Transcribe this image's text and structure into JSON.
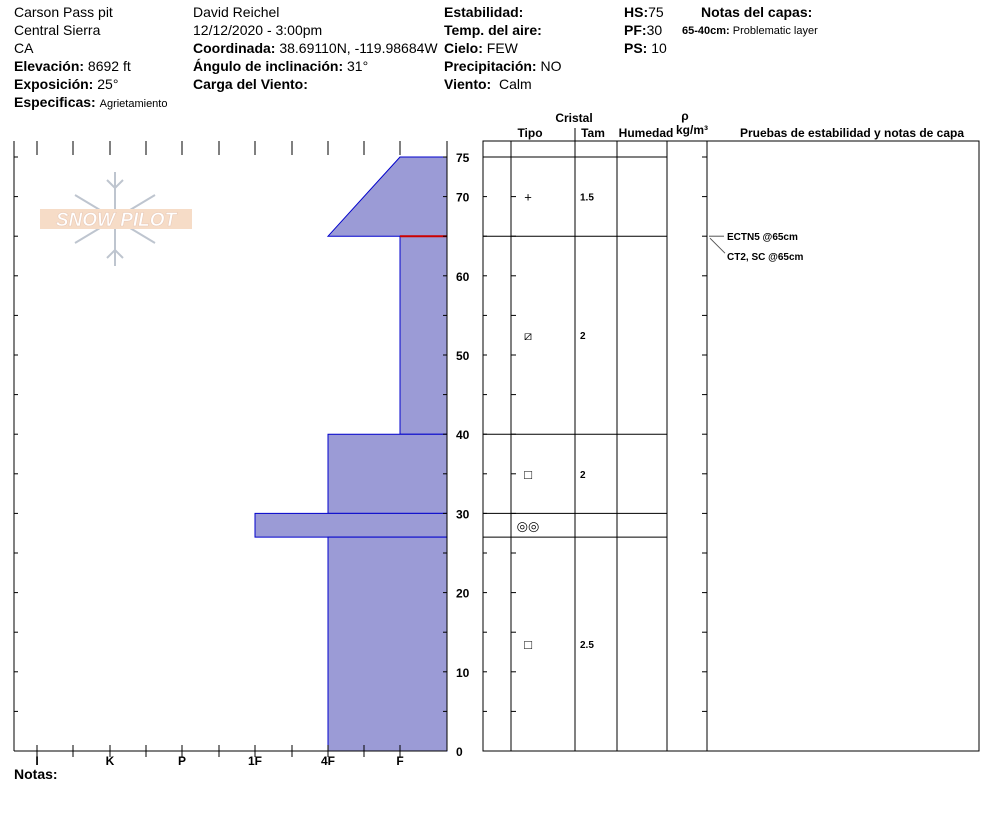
{
  "header": {
    "location": "Carson Pass pit",
    "range": "Central Sierra",
    "state": "CA",
    "elevation_label": "Elevación:",
    "elevation": "8692 ft",
    "aspect_label": "Exposición:",
    "aspect": "25°",
    "specifics_label": "Especificas:",
    "specifics": "Agrietamiento",
    "observer": "David Reichel",
    "datetime": "12/12/2020 - 3:00pm",
    "coord_label": "Coordinada:",
    "coord": "38.69110N, -119.98684W",
    "slope_label": "Ángulo de inclinación:",
    "slope": "31°",
    "wind_load_label": "Carga del Viento:",
    "stability_label": "Estabilidad:",
    "air_temp_label": "Temp. del aire:",
    "sky_label": "Cielo:",
    "sky": "FEW",
    "precip_label": "Precipitación:",
    "precip": "NO",
    "wind_label": "Viento:",
    "wind": "Calm",
    "hs_label": "HS:",
    "hs": "75",
    "pf_label": "PF:",
    "pf": "30",
    "ps_label": "PS:",
    "ps": "10",
    "layer_notes_label": "Notas del capas:",
    "layer_note_range": "65-40cm:",
    "layer_note": "Problematic layer"
  },
  "logo": {
    "text": "SNOW PILOT"
  },
  "table": {
    "crystal": "Cristal",
    "type": "Tipo",
    "size": "Tam",
    "moisture": "Humedad",
    "rho": "ρ",
    "density_unit": "kg/m³",
    "tests": "Pruebas de estabilidad y notas de capa",
    "test_results": [
      {
        "text": "ECTN5 @65cm",
        "depth": 65
      },
      {
        "text": "CT2, SC @65cm",
        "depth": 65
      }
    ],
    "grains": [
      {
        "depth": 70,
        "symbol": "+",
        "icon": "precipitation-particles-icon",
        "size": "1.5"
      },
      {
        "depth": 52.5,
        "symbol": "⧄",
        "icon": "rounding-faceted-icon",
        "size": "2"
      },
      {
        "depth": 35,
        "symbol": "□",
        "icon": "faceted-crystal-icon",
        "size": "2"
      },
      {
        "depth": 28.5,
        "symbol": "◎◎",
        "icon": "melt-freeze-icon",
        "size": ""
      },
      {
        "depth": 13.5,
        "symbol": "□",
        "icon": "faceted-crystal-icon",
        "size": "2.5"
      }
    ]
  },
  "notes_label": "Notas:",
  "colors": {
    "layer_fill": "#9b9bd6",
    "layer_stroke": "#0000cc",
    "critical_line": "#cc0000"
  },
  "chart_data": {
    "type": "area",
    "x_tick_labels": [
      "I",
      "K",
      "P",
      "1F",
      "4F",
      "F"
    ],
    "y_ticks": [
      0,
      10,
      20,
      30,
      40,
      50,
      60,
      70,
      75
    ],
    "ylim": [
      0,
      75
    ],
    "layers": [
      {
        "top": 75,
        "bottom": 65,
        "hardness_top": "F",
        "hardness_bottom": "4F"
      },
      {
        "top": 65,
        "bottom": 40,
        "hardness_top": "F",
        "hardness_bottom": "F"
      },
      {
        "top": 40,
        "bottom": 30,
        "hardness_top": "4F",
        "hardness_bottom": "4F"
      },
      {
        "top": 30,
        "bottom": 27,
        "hardness_top": "1F",
        "hardness_bottom": "1F"
      },
      {
        "top": 27,
        "bottom": 0,
        "hardness_top": "4F",
        "hardness_bottom": "4F"
      }
    ],
    "layer_boundaries": [
      75,
      65,
      40,
      30,
      27
    ],
    "critical_depth": 65
  }
}
